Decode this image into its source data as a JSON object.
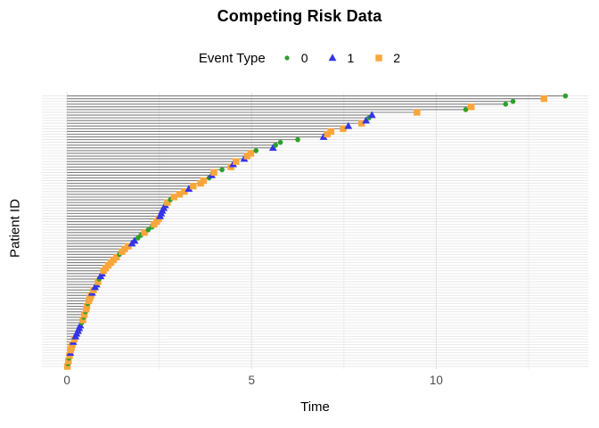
{
  "figure": {
    "title": "Competing Risk Data"
  },
  "legend": {
    "title": "Event Type",
    "entries": [
      {
        "label": "0",
        "shape": "circle",
        "color": "#2DA02C"
      },
      {
        "label": "1",
        "shape": "triangle",
        "color": "#3434E8"
      },
      {
        "label": "2",
        "shape": "square",
        "color": "#F9A63C"
      }
    ]
  },
  "axes": {
    "x_label": "Time",
    "y_label": "Patient ID",
    "x_tick_labels": [
      "0",
      "5",
      "10"
    ],
    "tick_label_color": "#4D4D4D"
  },
  "colors": {
    "background": "#FFFFFF",
    "segment": "#7F7F7F",
    "grid_major": "#E0E0E0",
    "grid_minor": "#EDEDED",
    "grid_row": "#E7E7E7",
    "event_0": "#2DA02C",
    "event_1": "#3434E8",
    "event_2": "#F9A63C"
  },
  "chart_data": {
    "type": "scatter",
    "subtype": "lollipop-event-plot",
    "title": "Competing Risk Data",
    "xlabel": "Time",
    "ylabel": "Patient ID",
    "legend_title": "Event Type",
    "legend_position": "top",
    "grid": true,
    "x_ticks": [
      0,
      5,
      10
    ],
    "x_minor_ticks": [
      2.5,
      7.5,
      12.5
    ],
    "xlim": [
      -0.68,
      14.12
    ],
    "n_patients": 100,
    "note": "Each patient (y row, sorted by time) has a grey segment from time 0 to event time, ending in a marker coding event type: 0=green circle, 1=blue triangle, 2=orange square.",
    "patient_format": [
      "id",
      "time",
      "event_type"
    ],
    "patients": [
      [
        1,
        0.01,
        2
      ],
      [
        2,
        0.03,
        0
      ],
      [
        3,
        0.04,
        2
      ],
      [
        4,
        0.05,
        0
      ],
      [
        5,
        0.07,
        2
      ],
      [
        6,
        0.09,
        1
      ],
      [
        7,
        0.1,
        2
      ],
      [
        8,
        0.12,
        2
      ],
      [
        9,
        0.14,
        2
      ],
      [
        10,
        0.17,
        1
      ],
      [
        11,
        0.2,
        2
      ],
      [
        12,
        0.23,
        1
      ],
      [
        13,
        0.26,
        1
      ],
      [
        14,
        0.3,
        1
      ],
      [
        15,
        0.33,
        1
      ],
      [
        16,
        0.36,
        1
      ],
      [
        17,
        0.4,
        0
      ],
      [
        18,
        0.43,
        2
      ],
      [
        19,
        0.45,
        0
      ],
      [
        20,
        0.47,
        2
      ],
      [
        21,
        0.5,
        0
      ],
      [
        22,
        0.52,
        2
      ],
      [
        23,
        0.54,
        2
      ],
      [
        24,
        0.56,
        0
      ],
      [
        25,
        0.59,
        2
      ],
      [
        26,
        0.62,
        2
      ],
      [
        27,
        0.65,
        2
      ],
      [
        28,
        0.68,
        1
      ],
      [
        29,
        0.72,
        2
      ],
      [
        30,
        0.76,
        1
      ],
      [
        31,
        0.8,
        1
      ],
      [
        32,
        0.84,
        2
      ],
      [
        33,
        0.87,
        0
      ],
      [
        34,
        0.91,
        1
      ],
      [
        35,
        0.95,
        1
      ],
      [
        36,
        0.99,
        2
      ],
      [
        37,
        1.05,
        2
      ],
      [
        38,
        1.12,
        2
      ],
      [
        39,
        1.19,
        2
      ],
      [
        40,
        1.26,
        2
      ],
      [
        41,
        1.34,
        2
      ],
      [
        42,
        1.42,
        0
      ],
      [
        43,
        1.49,
        2
      ],
      [
        44,
        1.56,
        2
      ],
      [
        45,
        1.66,
        2
      ],
      [
        46,
        1.76,
        1
      ],
      [
        47,
        1.83,
        1
      ],
      [
        48,
        1.92,
        0
      ],
      [
        49,
        2.0,
        0
      ],
      [
        50,
        2.1,
        2
      ],
      [
        51,
        2.2,
        0
      ],
      [
        52,
        2.3,
        0
      ],
      [
        53,
        2.36,
        2
      ],
      [
        54,
        2.43,
        2
      ],
      [
        55,
        2.48,
        2
      ],
      [
        56,
        2.52,
        1
      ],
      [
        57,
        2.55,
        1
      ],
      [
        58,
        2.58,
        1
      ],
      [
        59,
        2.62,
        1
      ],
      [
        60,
        2.66,
        1
      ],
      [
        61,
        2.72,
        2
      ],
      [
        62,
        2.8,
        0
      ],
      [
        63,
        2.9,
        2
      ],
      [
        64,
        3.05,
        2
      ],
      [
        65,
        3.18,
        2
      ],
      [
        66,
        3.3,
        1
      ],
      [
        67,
        3.42,
        2
      ],
      [
        68,
        3.62,
        2
      ],
      [
        69,
        3.7,
        2
      ],
      [
        70,
        3.85,
        0
      ],
      [
        71,
        3.92,
        1
      ],
      [
        72,
        3.98,
        2
      ],
      [
        73,
        4.2,
        0
      ],
      [
        74,
        4.44,
        2
      ],
      [
        75,
        4.5,
        1
      ],
      [
        76,
        4.58,
        2
      ],
      [
        77,
        4.8,
        1
      ],
      [
        78,
        4.88,
        2
      ],
      [
        79,
        4.98,
        2
      ],
      [
        80,
        5.12,
        0
      ],
      [
        81,
        5.58,
        1
      ],
      [
        82,
        5.65,
        0
      ],
      [
        83,
        5.78,
        0
      ],
      [
        84,
        6.25,
        0
      ],
      [
        85,
        6.95,
        1
      ],
      [
        86,
        7.05,
        2
      ],
      [
        87,
        7.15,
        2
      ],
      [
        88,
        7.48,
        2
      ],
      [
        89,
        7.62,
        1
      ],
      [
        90,
        7.98,
        2
      ],
      [
        91,
        8.1,
        1
      ],
      [
        92,
        8.18,
        0
      ],
      [
        93,
        8.26,
        1
      ],
      [
        94,
        9.48,
        2
      ],
      [
        95,
        10.8,
        0
      ],
      [
        96,
        10.95,
        2
      ],
      [
        97,
        11.88,
        0
      ],
      [
        98,
        12.08,
        0
      ],
      [
        99,
        12.92,
        2
      ],
      [
        100,
        13.5,
        0
      ]
    ]
  }
}
